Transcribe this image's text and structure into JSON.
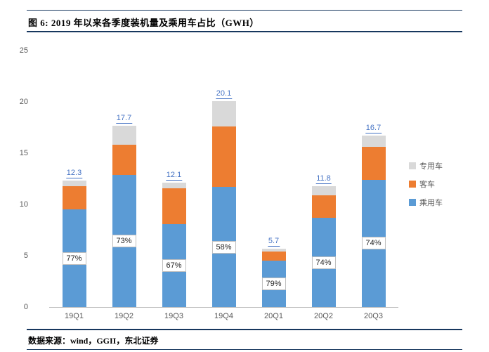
{
  "page": {
    "title": "图 6: 2019 年以来各季度装机量及乘用车占比（GWH）",
    "footer": "数据来源：wind，GGII，东北证券"
  },
  "chart_data": {
    "type": "bar",
    "stacked": true,
    "title": "2019 年以来各季度装机量及乘用车占比（GWH）",
    "categories": [
      "19Q1",
      "19Q2",
      "19Q3",
      "19Q4",
      "20Q1",
      "20Q2",
      "20Q3"
    ],
    "series": [
      {
        "name": "乘用车",
        "color": "#5b9bd5",
        "values": [
          9.5,
          12.9,
          8.1,
          11.7,
          4.5,
          8.7,
          12.4
        ]
      },
      {
        "name": "客车",
        "color": "#ed7d31",
        "values": [
          2.3,
          2.9,
          3.5,
          5.9,
          0.9,
          2.2,
          3.2
        ]
      },
      {
        "name": "专用车",
        "color": "#d9d9d9",
        "values": [
          0.5,
          1.9,
          0.5,
          2.5,
          0.3,
          0.9,
          1.1
        ]
      }
    ],
    "total_labels": [
      "12.3",
      "17.7",
      "12.1",
      "20.1",
      "5.7",
      "11.8",
      "16.7"
    ],
    "pct_labels": [
      "77%",
      "73%",
      "67%",
      "58%",
      "79%",
      "74%",
      "74%"
    ],
    "ylim": [
      0,
      25
    ],
    "yticks": [
      0,
      5,
      10,
      15,
      20,
      25
    ],
    "legend": [
      "专用车",
      "客车",
      "乘用车"
    ],
    "legend_position": "right",
    "grid": false,
    "total_label_color": "#4472c4"
  }
}
